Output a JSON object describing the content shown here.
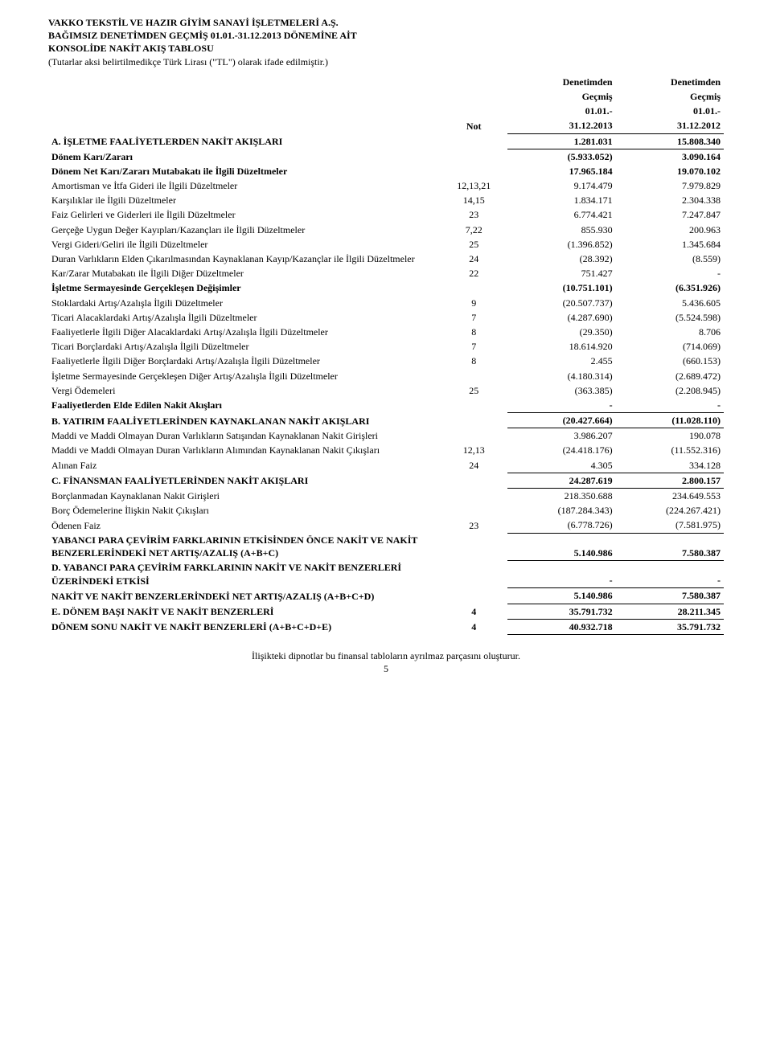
{
  "header": {
    "l1": "VAKKO TEKSTİL VE HAZIR GİYİM SANAYİ İŞLETMELERİ A.Ş.",
    "l2": "BAĞIMSIZ DENETİMDEN GEÇMİŞ 01.01.-31.12.2013 DÖNEMİNE AİT",
    "l3": "KONSOLİDE NAKİT AKIŞ TABLOSU",
    "l4": "(Tutarlar aksi belirtilmedikçe Türk Lirası (\"TL\") olarak ifade edilmiştir.)"
  },
  "colhead": {
    "not": "Not",
    "audit1": "Denetimden",
    "audit2": "Denetimden",
    "gecmis": "Geçmiş",
    "p1a": "01.01.-",
    "p1b": "31.12.2013",
    "p2a": "01.01.-",
    "p2b": "31.12.2012"
  },
  "rows": [
    {
      "label": "A. İŞLETME FAALİYETLERDEN NAKİT AKIŞLARI",
      "not": "",
      "v1": "1.281.031",
      "v2": "15.808.340",
      "bold": true,
      "btop": true,
      "bbot": true
    },
    {
      "label": "Dönem Karı/Zararı",
      "not": "",
      "v1": "(5.933.052)",
      "v2": "3.090.164",
      "bold": true
    },
    {
      "label": "Dönem Net Karı/Zararı Mutabakatı ile İlgili Düzeltmeler",
      "not": "",
      "v1": "17.965.184",
      "v2": "19.070.102",
      "bold": true
    },
    {
      "label": "Amortisman ve İtfa Gideri ile İlgili Düzeltmeler",
      "not": "12,13,21",
      "v1": "9.174.479",
      "v2": "7.979.829"
    },
    {
      "label": "Karşılıklar ile İlgili Düzeltmeler",
      "not": "14,15",
      "v1": "1.834.171",
      "v2": "2.304.338"
    },
    {
      "label": "Faiz Gelirleri ve Giderleri ile İlgili Düzeltmeler",
      "not": "23",
      "v1": "6.774.421",
      "v2": "7.247.847"
    },
    {
      "label": "Gerçeğe Uygun Değer Kayıpları/Kazançları ile İlgili Düzeltmeler",
      "not": "7,22",
      "v1": "855.930",
      "v2": "200.963"
    },
    {
      "label": "Vergi Gideri/Geliri ile İlgili Düzeltmeler",
      "not": "25",
      "v1": "(1.396.852)",
      "v2": "1.345.684"
    },
    {
      "label": "Duran Varlıkların Elden Çıkarılmasından Kaynaklanan Kayıp/Kazançlar ile İlgili Düzeltmeler",
      "not": "24",
      "v1": "(28.392)",
      "v2": "(8.559)"
    },
    {
      "label": "Kar/Zarar Mutabakatı ile İlgili Diğer Düzeltmeler",
      "not": "22",
      "v1": "751.427",
      "v2": "-"
    },
    {
      "label": "İşletme Sermayesinde Gerçekleşen Değişimler",
      "not": "",
      "v1": "(10.751.101)",
      "v2": "(6.351.926)",
      "bold": true
    },
    {
      "label": "Stoklardaki Artış/Azalışla İlgili Düzeltmeler",
      "not": "9",
      "v1": "(20.507.737)",
      "v2": "5.436.605"
    },
    {
      "label": "Ticari Alacaklardaki Artış/Azalışla İlgili Düzeltmeler",
      "not": "7",
      "v1": "(4.287.690)",
      "v2": "(5.524.598)"
    },
    {
      "label": "Faaliyetlerle İlgili Diğer Alacaklardaki Artış/Azalışla İlgili Düzeltmeler",
      "not": "8",
      "v1": "(29.350)",
      "v2": "8.706"
    },
    {
      "label": "Ticari Borçlardaki Artış/Azalışla İlgili Düzeltmeler",
      "not": "7",
      "v1": "18.614.920",
      "v2": "(714.069)"
    },
    {
      "label": "Faaliyetlerle İlgili Diğer Borçlardaki Artış/Azalışla İlgili Düzeltmeler",
      "not": "8",
      "v1": "2.455",
      "v2": "(660.153)"
    },
    {
      "label": "İşletme Sermayesinde Gerçekleşen Diğer Artış/Azalışla İlgili Düzeltmeler",
      "not": "",
      "v1": "(4.180.314)",
      "v2": "(2.689.472)"
    },
    {
      "label": "Vergi Ödemeleri",
      "not": "25",
      "v1": "(363.385)",
      "v2": "(2.208.945)"
    },
    {
      "label": "Faaliyetlerden Elde Edilen Nakit Akışları",
      "not": "",
      "v1": "-",
      "v2": "-",
      "bold": true
    },
    {
      "label": "B. YATIRIM FAALİYETLERİNDEN KAYNAKLANAN NAKİT AKIŞLARI",
      "not": "",
      "v1": "(20.427.664)",
      "v2": "(11.028.110)",
      "bold": true,
      "btop": true,
      "bbot": true
    },
    {
      "label": "Maddi ve Maddi Olmayan Duran Varlıkların Satışından Kaynaklanan Nakit Girişleri",
      "not": "",
      "v1": "3.986.207",
      "v2": "190.078"
    },
    {
      "label": "Maddi ve Maddi Olmayan Duran Varlıkların Alımından Kaynaklanan Nakit Çıkışları",
      "not": "12,13",
      "v1": "(24.418.176)",
      "v2": "(11.552.316)"
    },
    {
      "label": "Alınan Faiz",
      "not": "24",
      "v1": "4.305",
      "v2": "334.128"
    },
    {
      "label": "C. FİNANSMAN FAALİYETLERİNDEN NAKİT AKIŞLARI",
      "not": "",
      "v1": "24.287.619",
      "v2": "2.800.157",
      "bold": true,
      "btop": true,
      "bbot": true
    },
    {
      "label": "Borçlanmadan Kaynaklanan Nakit Girişleri",
      "not": "",
      "v1": "218.350.688",
      "v2": "234.649.553"
    },
    {
      "label": "Borç Ödemelerine İlişkin Nakit Çıkışları",
      "not": "",
      "v1": "(187.284.343)",
      "v2": "(224.267.421)"
    },
    {
      "label": "Ödenen Faiz",
      "not": "23",
      "v1": "(6.778.726)",
      "v2": "(7.581.975)"
    },
    {
      "label": "YABANCI PARA ÇEVİRİM FARKLARININ ETKİSİNDEN ÖNCE NAKİT VE NAKİT BENZERLERİNDEKİ NET ARTIŞ/AZALIŞ (A+B+C)",
      "not": "",
      "v1": "5.140.986",
      "v2": "7.580.387",
      "bold": true,
      "btop": true,
      "bbot": true
    },
    {
      "label": "D. YABANCI PARA ÇEVİRİM FARKLARININ NAKİT VE NAKİT BENZERLERİ ÜZERİNDEKİ ETKİSİ",
      "not": "",
      "v1": "-",
      "v2": "-",
      "bold": true,
      "btop": true,
      "bbot": true
    },
    {
      "label": "NAKİT VE NAKİT BENZERLERİNDEKİ NET ARTIŞ/AZALIŞ (A+B+C+D)",
      "not": "",
      "v1": "5.140.986",
      "v2": "7.580.387",
      "bold": true,
      "btop": true,
      "bbot": true
    },
    {
      "label": "E. DÖNEM BAŞI NAKİT VE NAKİT BENZERLERİ",
      "not": "4",
      "v1": "35.791.732",
      "v2": "28.211.345",
      "bold": true,
      "btop": true,
      "bbot": true
    },
    {
      "label": "DÖNEM SONU NAKİT VE NAKİT BENZERLERİ (A+B+C+D+E)",
      "not": "4",
      "v1": "40.932.718",
      "v2": "35.791.732",
      "bold": true,
      "btop": true,
      "bbot": true
    }
  ],
  "footer": {
    "note": "İlişikteki dipnotlar bu finansal tabloların ayrılmaz parçasını oluşturur.",
    "pageno": "5"
  }
}
